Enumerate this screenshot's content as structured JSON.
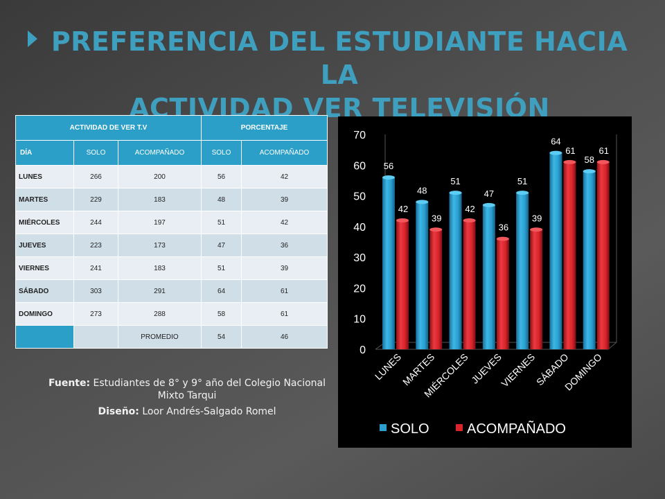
{
  "title": {
    "line1": "PREFERENCIA DEL ESTUDIANTE HACIA LA",
    "line2": "ACTIVIDAD VER TELEVISIÓN"
  },
  "table": {
    "header_activity": "ACTIVIDAD DE VER T.V",
    "header_percent": "PORCENTAJE",
    "sub": [
      "DÍA",
      "SOLO",
      "ACOMPAÑADO",
      "SOLO",
      "ACOMPAÑADO"
    ],
    "rows": [
      [
        "LUNES",
        "266",
        "200",
        "56",
        "42"
      ],
      [
        "MARTES",
        "229",
        "183",
        "48",
        "39"
      ],
      [
        "MIÉRCOLES",
        "244",
        "197",
        "51",
        "42"
      ],
      [
        "JUEVES",
        "223",
        "173",
        "47",
        "36"
      ],
      [
        "VIERNES",
        "241",
        "183",
        "51",
        "39"
      ],
      [
        "SÁBADO",
        "303",
        "291",
        "64",
        "61"
      ],
      [
        "DOMINGO",
        "273",
        "288",
        "58",
        "61"
      ]
    ],
    "average": [
      "",
      "",
      "PROMEDIO",
      "54",
      "46"
    ]
  },
  "source": {
    "fuente_label": "Fuente:",
    "fuente_text": "Estudiantes de 8° y 9° año del Colegio Nacional Mixto Tarqui",
    "diseno_label": "Diseño:",
    "diseno_text": "Loor Andrés-Salgado Romel"
  },
  "colors": {
    "accent": "#3f9fbf",
    "solo": "#2a9fd0",
    "acompanado": "#d8242b"
  },
  "chart_data": {
    "type": "bar",
    "categories": [
      "LUNES",
      "MARTES",
      "MIÉRCOLES",
      "JUEVES",
      "VIERNES",
      "SÁBADO",
      "DOMINGO"
    ],
    "series": [
      {
        "name": "SOLO",
        "values": [
          56,
          48,
          51,
          47,
          51,
          64,
          58
        ]
      },
      {
        "name": "ACOMPAÑADO",
        "values": [
          42,
          39,
          42,
          36,
          39,
          61,
          61
        ]
      }
    ],
    "ylim": [
      0,
      70
    ],
    "yticks": [
      "0",
      "10",
      "20",
      "30",
      "40",
      "50",
      "60",
      "70"
    ],
    "legend": "bottom",
    "grid": false
  }
}
